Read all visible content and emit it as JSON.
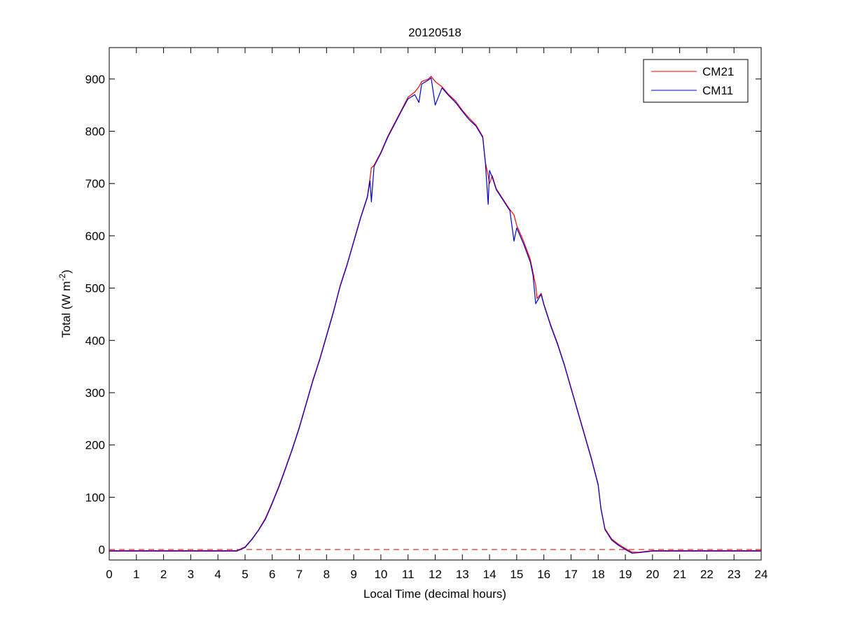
{
  "chart_data": {
    "type": "line",
    "title": "20120518",
    "xlabel": "Local Time (decimal hours)",
    "ylabel": "Total (W m",
    "ylabel_exp": "-2",
    "ylabel_close": ")",
    "xlim": [
      0,
      24
    ],
    "ylim": [
      -20,
      960
    ],
    "xticks": [
      0,
      1,
      2,
      3,
      4,
      5,
      6,
      7,
      8,
      9,
      10,
      11,
      12,
      13,
      14,
      15,
      16,
      17,
      18,
      19,
      20,
      21,
      22,
      23,
      24
    ],
    "yticks": [
      0,
      100,
      200,
      300,
      400,
      500,
      600,
      700,
      800,
      900
    ],
    "grid": false,
    "legend_position": "top-right",
    "reference_line": {
      "y": 0,
      "style": "dashed",
      "color": "#cc0000"
    },
    "series": [
      {
        "name": "CM21",
        "color": "#ff0000",
        "x": [
          0,
          1,
          2,
          3,
          4,
          4.7,
          5.0,
          5.25,
          5.5,
          5.75,
          6.0,
          6.25,
          6.5,
          6.75,
          7.0,
          7.25,
          7.5,
          7.75,
          8.0,
          8.25,
          8.5,
          8.75,
          9.0,
          9.25,
          9.5,
          9.6,
          9.65,
          9.75,
          10.0,
          10.25,
          10.5,
          10.75,
          11.0,
          11.25,
          11.4,
          11.5,
          11.75,
          11.85,
          12.0,
          12.25,
          12.5,
          12.75,
          13.0,
          13.25,
          13.5,
          13.75,
          13.85,
          13.95,
          14.0,
          14.1,
          14.25,
          14.5,
          14.75,
          14.9,
          15.0,
          15.25,
          15.5,
          15.6,
          15.7,
          15.75,
          15.9,
          16.0,
          16.25,
          16.5,
          16.75,
          17.0,
          17.25,
          17.5,
          17.75,
          18.0,
          18.1,
          18.25,
          18.5,
          18.75,
          19.0,
          19.25,
          19.5,
          20.0,
          21.0,
          22.0,
          23.0,
          24.0
        ],
        "y": [
          -2,
          -2,
          -2,
          -2,
          -2,
          -2,
          5,
          20,
          38,
          60,
          90,
          122,
          158,
          195,
          235,
          280,
          325,
          365,
          410,
          455,
          505,
          545,
          590,
          635,
          675,
          710,
          730,
          735,
          760,
          790,
          815,
          840,
          865,
          875,
          885,
          895,
          900,
          905,
          895,
          885,
          870,
          858,
          840,
          825,
          812,
          790,
          740,
          715,
          700,
          715,
          690,
          670,
          650,
          640,
          620,
          590,
          555,
          530,
          505,
          480,
          490,
          470,
          430,
          395,
          355,
          310,
          265,
          220,
          175,
          125,
          80,
          40,
          20,
          10,
          2,
          -5,
          -5,
          -2,
          -2,
          -2,
          -2,
          -2
        ]
      },
      {
        "name": "CM11",
        "color": "#0000cc",
        "x": [
          0,
          1,
          2,
          3,
          4,
          4.7,
          5.0,
          5.25,
          5.5,
          5.75,
          6.0,
          6.25,
          6.5,
          6.75,
          7.0,
          7.25,
          7.5,
          7.75,
          8.0,
          8.25,
          8.5,
          8.75,
          9.0,
          9.25,
          9.5,
          9.6,
          9.65,
          9.75,
          10.0,
          10.25,
          10.5,
          10.75,
          11.0,
          11.25,
          11.4,
          11.5,
          11.75,
          11.85,
          12.0,
          12.25,
          12.5,
          12.75,
          13.0,
          13.25,
          13.5,
          13.75,
          13.85,
          13.95,
          14.0,
          14.1,
          14.25,
          14.5,
          14.75,
          14.9,
          15.0,
          15.25,
          15.5,
          15.6,
          15.7,
          15.75,
          15.9,
          16.0,
          16.25,
          16.5,
          16.75,
          17.0,
          17.25,
          17.5,
          17.75,
          18.0,
          18.1,
          18.25,
          18.5,
          18.75,
          19.0,
          19.25,
          19.5,
          20.0,
          21.0,
          22.0,
          23.0,
          24.0
        ],
        "y": [
          -3,
          -3,
          -3,
          -3,
          -3,
          -3,
          4,
          19,
          37,
          58,
          88,
          120,
          156,
          193,
          233,
          278,
          323,
          363,
          408,
          453,
          503,
          543,
          588,
          633,
          673,
          705,
          665,
          733,
          758,
          788,
          813,
          838,
          862,
          870,
          855,
          890,
          898,
          902,
          850,
          883,
          868,
          855,
          838,
          822,
          810,
          788,
          738,
          660,
          725,
          712,
          688,
          668,
          648,
          590,
          615,
          585,
          550,
          525,
          470,
          475,
          488,
          468,
          428,
          393,
          353,
          308,
          263,
          218,
          173,
          123,
          78,
          38,
          18,
          8,
          0,
          -7,
          -6,
          -3,
          -3,
          -3,
          -3,
          -3
        ]
      }
    ]
  }
}
